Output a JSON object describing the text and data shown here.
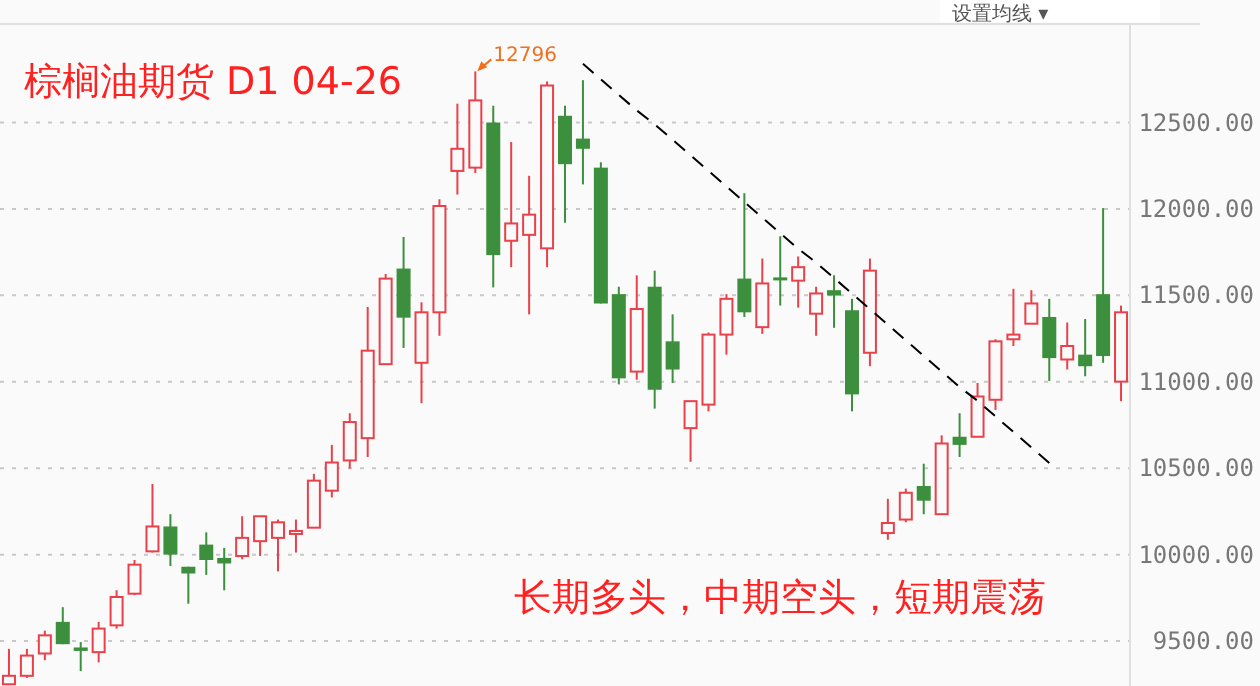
{
  "chart_data": {
    "type": "candlestick",
    "title": "棕榈油期货 D1  04-26",
    "annotations": [
      "长期多头，中期空头，短期震荡",
      "12796",
      "设置均线 ▾"
    ],
    "categories": [
      null,
      null,
      null,
      null,
      null,
      null,
      null,
      null,
      null,
      null,
      null,
      null,
      null,
      null,
      null,
      null,
      null,
      null,
      null,
      null,
      null,
      null,
      null,
      null,
      null,
      null,
      null,
      null,
      null,
      null,
      null,
      null,
      null,
      null,
      null,
      null,
      null,
      null,
      null,
      null,
      null,
      null,
      null,
      null,
      null,
      null,
      null,
      null,
      null,
      null,
      null,
      null,
      null,
      null,
      null,
      null,
      null,
      null,
      null,
      null,
      null,
      null,
      null
    ],
    "ohlc": [
      [
        9250,
        9455,
        9245,
        9299
      ],
      [
        9299,
        9455,
        9287,
        9416
      ],
      [
        9428,
        9560,
        9389,
        9533
      ],
      [
        9611,
        9696,
        9482,
        9482
      ],
      [
        9463,
        9494,
        9326,
        9443
      ],
      [
        9436,
        9611,
        9377,
        9572
      ],
      [
        9591,
        9794,
        9572,
        9755
      ],
      [
        9774,
        9969,
        9766,
        9942
      ],
      [
        10019,
        10409,
        10012,
        10163
      ],
      [
        10163,
        10234,
        9934,
        10000
      ],
      [
        9930,
        9930,
        9716,
        9891
      ],
      [
        10058,
        10129,
        9883,
        9969
      ],
      [
        9981,
        10039,
        9794,
        9949
      ],
      [
        9992,
        10222,
        9973,
        10097
      ],
      [
        10078,
        10222,
        9992,
        10222
      ],
      [
        10097,
        10203,
        9903,
        10187
      ],
      [
        10125,
        10203,
        10012,
        10137
      ],
      [
        10156,
        10467,
        10156,
        10428
      ],
      [
        10370,
        10635,
        10331,
        10533
      ],
      [
        10545,
        10818,
        10498,
        10767
      ],
      [
        10674,
        11433,
        10565,
        11180
      ],
      [
        11102,
        11624,
        11102,
        11597
      ],
      [
        11655,
        11838,
        11196,
        11371
      ],
      [
        11110,
        11460,
        10876,
        11402
      ],
      [
        11402,
        12056,
        11266,
        12017
      ],
      [
        12220,
        12609,
        12083,
        12348
      ],
      [
        12239,
        12796,
        12208,
        12628
      ],
      [
        12500,
        12597,
        11546,
        11733
      ],
      [
        11816,
        12387,
        11663,
        11916
      ],
      [
        11850,
        12192,
        11390,
        11967
      ],
      [
        11772,
        12738,
        11663,
        12714
      ],
      [
        12539,
        12597,
        11920,
        12259
      ],
      [
        12407,
        12745,
        12142,
        12348
      ],
      [
        12239,
        12270,
        11453,
        11453
      ],
      [
        11507,
        11550,
        10985,
        11020
      ],
      [
        11059,
        11616,
        11012,
        11421
      ],
      [
        11550,
        11643,
        10845,
        10954
      ],
      [
        11234,
        11390,
        10993,
        11071
      ],
      [
        10732,
        10888,
        10537,
        10888
      ],
      [
        10868,
        11285,
        10829,
        11273
      ],
      [
        11273,
        11507,
        11157,
        11480
      ],
      [
        11597,
        12091,
        11375,
        11402
      ],
      [
        11316,
        11713,
        11277,
        11569
      ],
      [
        11604,
        11842,
        11441,
        11597
      ],
      [
        11585,
        11725,
        11429,
        11663
      ],
      [
        11394,
        11550,
        11266,
        11511
      ],
      [
        11530,
        11616,
        11312,
        11499
      ],
      [
        11414,
        11480,
        10829,
        10927
      ],
      [
        11168,
        11713,
        11090,
        11643
      ],
      [
        10125,
        10323,
        10086,
        10183
      ],
      [
        10203,
        10382,
        10187,
        10358
      ],
      [
        10397,
        10526,
        10234,
        10312
      ],
      [
        10234,
        10690,
        10234,
        10643
      ],
      [
        10682,
        10818,
        10565,
        10635
      ],
      [
        10682,
        10993,
        10682,
        10915
      ],
      [
        10896,
        11246,
        10837,
        11234
      ],
      [
        11246,
        11538,
        11207,
        11273
      ],
      [
        11336,
        11530,
        11336,
        11453
      ],
      [
        11375,
        11480,
        11005,
        11137
      ],
      [
        11129,
        11343,
        11071,
        11207
      ],
      [
        11157,
        11363,
        11032,
        11090
      ],
      [
        11507,
        12005,
        11110,
        11149
      ],
      [
        11001,
        11441,
        10888,
        11402
      ]
    ],
    "colors": [
      "#e8414a",
      "#e8414a",
      "#e8414a",
      "#3c8f3c",
      "#3c8f3c",
      "#e8414a",
      "#e8414a",
      "#e8414a",
      "#e8414a",
      "#3c8f3c",
      "#3c8f3c",
      "#3c8f3c",
      "#3c8f3c",
      "#e8414a",
      "#e8414a",
      "#e8414a",
      "#e8414a",
      "#e8414a",
      "#e8414a",
      "#e8414a",
      "#e8414a",
      "#e8414a",
      "#3c8f3c",
      "#e8414a",
      "#e8414a",
      "#e8414a",
      "#e8414a",
      "#3c8f3c",
      "#e8414a",
      "#e8414a",
      "#e8414a",
      "#3c8f3c",
      "#3c8f3c",
      "#3c8f3c",
      "#3c8f3c",
      "#e8414a",
      "#3c8f3c",
      "#3c8f3c",
      "#e8414a",
      "#e8414a",
      "#e8414a",
      "#3c8f3c",
      "#e8414a",
      "#3c8f3c",
      "#e8414a",
      "#e8414a",
      "#3c8f3c",
      "#3c8f3c",
      "#e8414a",
      "#e8414a",
      "#e8414a",
      "#3c8f3c",
      "#e8414a",
      "#3c8f3c",
      "#e8414a",
      "#e8414a",
      "#e8414a",
      "#e8414a",
      "#3c8f3c",
      "#e8414a",
      "#3c8f3c",
      "#3c8f3c",
      "#e8414a"
    ],
    "series": [
      {
        "type": "line",
        "color": "#000000",
        "line_style": "dashed",
        "values": [
          null,
          null,
          null,
          null,
          null,
          null,
          null,
          null,
          null,
          null,
          null,
          null,
          null,
          null,
          null,
          null,
          null,
          null,
          null,
          null,
          null,
          null,
          null,
          null,
          null,
          null,
          null,
          null,
          null,
          null,
          null,
          null,
          12840,
          12750,
          12660,
          12570,
          12490,
          12400,
          12310,
          12220,
          12130,
          12040,
          11950,
          11860,
          11770,
          11690,
          11600,
          11510,
          11420,
          11330,
          11240,
          11150,
          11060,
          10970,
          10890,
          10800,
          10710,
          10620,
          10530,
          null,
          null,
          null,
          null
        ]
      }
    ],
    "ylim": [
      9240,
      13070
    ],
    "yticks": [
      {
        "value": 9500,
        "label": "9500.00"
      },
      {
        "value": 10000,
        "label": "10000.00"
      },
      {
        "value": 10500,
        "label": "10500.00"
      },
      {
        "value": 11000,
        "label": "11000.00"
      },
      {
        "value": 11500,
        "label": "11500.00"
      },
      {
        "value": 12000,
        "label": "12000.00"
      },
      {
        "value": 12500,
        "label": "12500.00"
      }
    ],
    "grid": "y"
  }
}
